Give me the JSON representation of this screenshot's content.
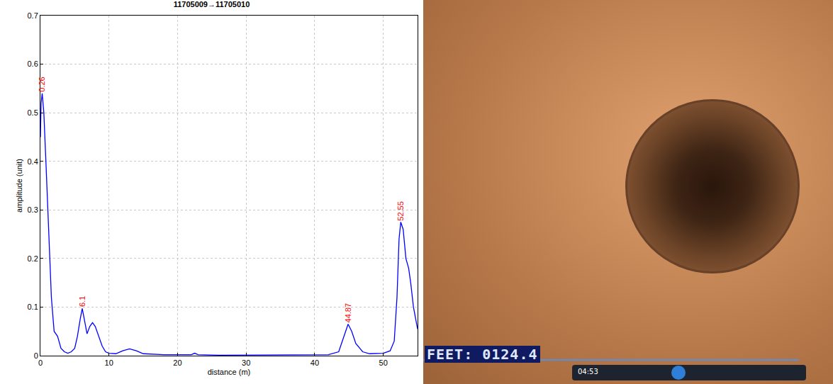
{
  "chart_data": {
    "type": "line",
    "title": "11705009→11705010",
    "x_label": "distance (m)",
    "y_label": "amplitude (unit)",
    "x": [
      0,
      0.1,
      0.26,
      0.5,
      0.8,
      1.2,
      1.6,
      2.0,
      2.5,
      3.0,
      3.5,
      4.0,
      4.5,
      5.0,
      5.4,
      5.8,
      6.1,
      6.4,
      6.8,
      7.2,
      7.6,
      8.0,
      8.5,
      9.0,
      9.5,
      10.0,
      11.0,
      12.0,
      13.0,
      14.0,
      15.0,
      16.0,
      18.0,
      20.0,
      22.0,
      22.5,
      23.0,
      26.0,
      30.0,
      35.0,
      40.0,
      42.0,
      43.5,
      44.3,
      44.87,
      45.4,
      46.0,
      47.0,
      48.0,
      50.0,
      51.0,
      51.6,
      52.0,
      52.3,
      52.55,
      52.9,
      53.3,
      53.7,
      54.0,
      54.4,
      54.8,
      55.0
    ],
    "values": [
      0.45,
      0.52,
      0.54,
      0.5,
      0.4,
      0.25,
      0.12,
      0.05,
      0.04,
      0.015,
      0.008,
      0.005,
      0.008,
      0.015,
      0.04,
      0.075,
      0.097,
      0.075,
      0.045,
      0.06,
      0.068,
      0.06,
      0.04,
      0.02,
      0.008,
      0.005,
      0.004,
      0.01,
      0.014,
      0.01,
      0.004,
      0.003,
      0.002,
      0.002,
      0.002,
      0.005,
      0.002,
      0.001,
      0.001,
      0.001,
      0.001,
      0.002,
      0.008,
      0.04,
      0.065,
      0.05,
      0.025,
      0.008,
      0.004,
      0.005,
      0.01,
      0.03,
      0.12,
      0.24,
      0.275,
      0.26,
      0.2,
      0.18,
      0.15,
      0.1,
      0.07,
      0.055
    ],
    "color": "#0000ff",
    "xlim": [
      0,
      55
    ],
    "xticks": [
      0,
      10,
      20,
      30,
      40,
      50
    ],
    "ylim": [
      0,
      0.7
    ],
    "yticks": [
      0,
      0.1,
      0.2,
      0.3,
      0.4,
      0.5,
      0.6,
      0.7
    ],
    "grid": true,
    "annotations": [
      {
        "x": 0.26,
        "y": 0.54,
        "text": "0.26",
        "color": "#ff0000"
      },
      {
        "x": 6.1,
        "y": 0.097,
        "text": "6.1",
        "color": "#ff0000"
      },
      {
        "x": 44.87,
        "y": 0.065,
        "text": "44.87",
        "color": "#ff0000"
      },
      {
        "x": 52.55,
        "y": 0.275,
        "text": "52.55",
        "color": "#ff0000"
      }
    ]
  },
  "photo": {
    "overlay_text": "FEET: 0124.4",
    "player_time": "04:53"
  }
}
